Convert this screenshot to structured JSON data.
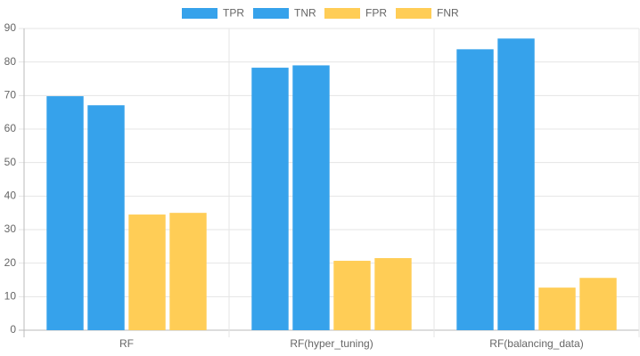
{
  "chart_data": {
    "type": "bar",
    "categories": [
      "RF",
      "RF(hyper_tuning)",
      "RF(balancing_data)"
    ],
    "series": [
      {
        "name": "TPR",
        "color": "#36a2eb",
        "values": [
          69.8,
          78.3,
          83.8
        ]
      },
      {
        "name": "TNR",
        "color": "#36a2eb",
        "values": [
          67.1,
          79.0,
          87.0
        ]
      },
      {
        "name": "FPR",
        "color": "#ffcd56",
        "values": [
          34.5,
          20.7,
          12.7
        ]
      },
      {
        "name": "FNR",
        "color": "#ffcd56",
        "values": [
          35.0,
          21.5,
          15.6
        ]
      }
    ],
    "ylim": [
      0,
      90
    ],
    "yticks": [
      0,
      10,
      20,
      30,
      40,
      50,
      60,
      70,
      80,
      90
    ],
    "grid": true,
    "legend": "top"
  }
}
